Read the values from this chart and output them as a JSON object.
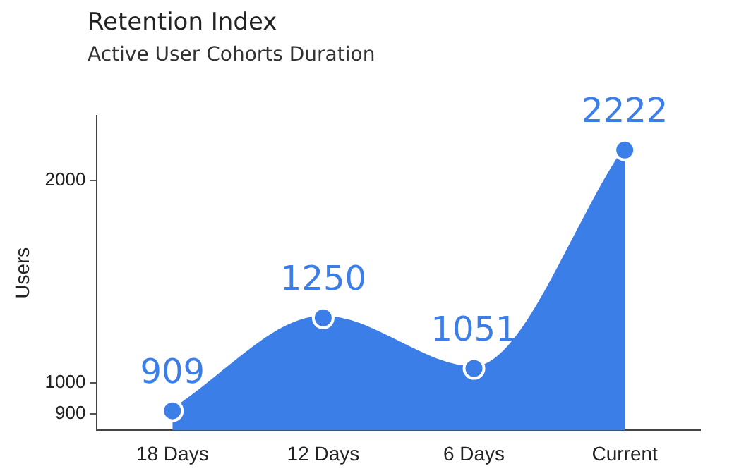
{
  "chart_data": {
    "type": "area",
    "title": "Retention Index",
    "subtitle": "Active User Cohorts Duration",
    "ylabel": "Users",
    "categories": [
      "18 Days",
      "12 Days",
      "6 Days",
      "Current"
    ],
    "series": [
      {
        "color": "#3b7ee8",
        "values": [
          909,
          1250,
          1051,
          2222
        ]
      }
    ],
    "log": "y",
    "ylim": [
      850,
      2500
    ],
    "yticks": [
      900,
      1000,
      2000
    ],
    "data_labels": true,
    "marker": "circle",
    "grid": false,
    "legend": false
  }
}
